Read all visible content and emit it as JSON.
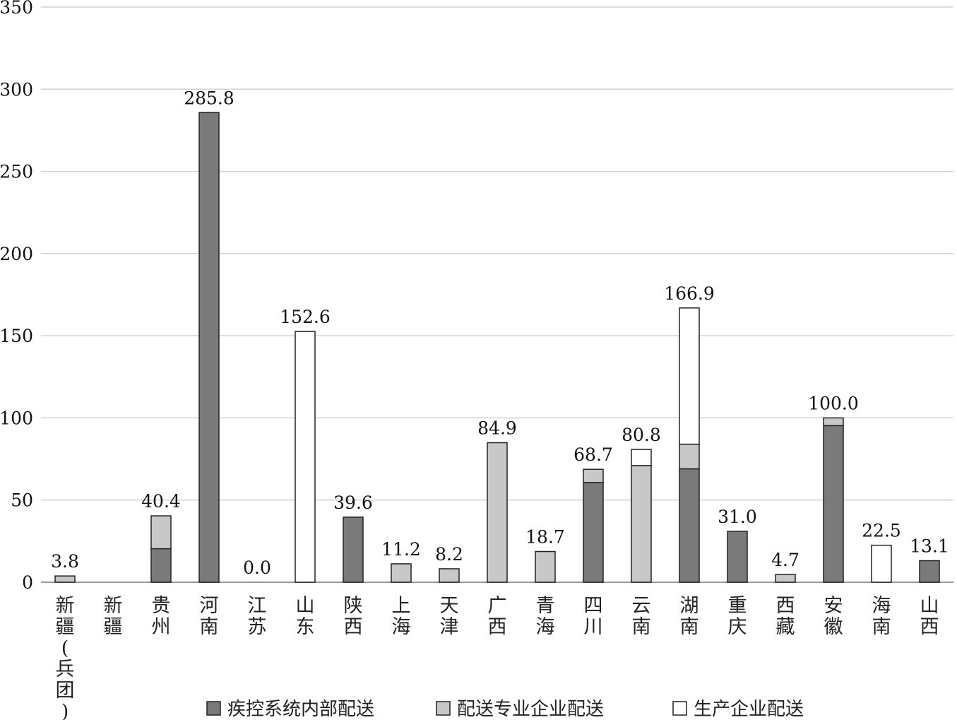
{
  "chart_data": {
    "type": "bar",
    "stacked": true,
    "title": "",
    "xlabel": "",
    "ylabel": "",
    "ylim": [
      0,
      350
    ],
    "yticks": [
      0,
      50,
      100,
      150,
      200,
      250,
      300,
      350
    ],
    "grid": true,
    "legend_position": "bottom",
    "categories": [
      "新疆(兵团)",
      "新疆",
      "贵州",
      "河南",
      "江苏",
      "山东",
      "陕西",
      "上海",
      "天津",
      "广西",
      "青海",
      "四川",
      "云南",
      "湖南",
      "重庆",
      "西藏",
      "安徽",
      "海南",
      "山西"
    ],
    "series": [
      {
        "name": "疾控系统内部配送",
        "color": "#7a7a7a",
        "values": [
          0,
          0,
          20.4,
          285.8,
          0,
          0,
          39.6,
          0,
          0,
          0,
          0,
          60.7,
          0,
          69.0,
          31.0,
          0,
          95.3,
          0,
          13.1
        ]
      },
      {
        "name": "配送专业企业配送",
        "color": "#c8c8c8",
        "values": [
          3.8,
          0,
          20.0,
          0,
          0,
          0,
          0,
          11.2,
          8.2,
          84.9,
          18.7,
          8.0,
          71.0,
          15.0,
          0,
          4.7,
          4.7,
          0,
          0
        ]
      },
      {
        "name": "生产企业配送",
        "color": "#ffffff",
        "values": [
          0,
          0,
          0,
          0,
          0,
          152.6,
          0,
          0,
          0,
          0,
          0,
          0,
          9.8,
          82.9,
          0,
          0,
          0,
          22.5,
          0
        ]
      }
    ],
    "totals": [
      "3.8",
      "",
      "40.4",
      "285.8",
      "0.0",
      "152.6",
      "39.6",
      "11.2",
      "8.2",
      "84.9",
      "18.7",
      "68.7",
      "80.8",
      "166.9",
      "31.0",
      "4.7",
      "100.0",
      "22.5",
      "13.1"
    ]
  }
}
